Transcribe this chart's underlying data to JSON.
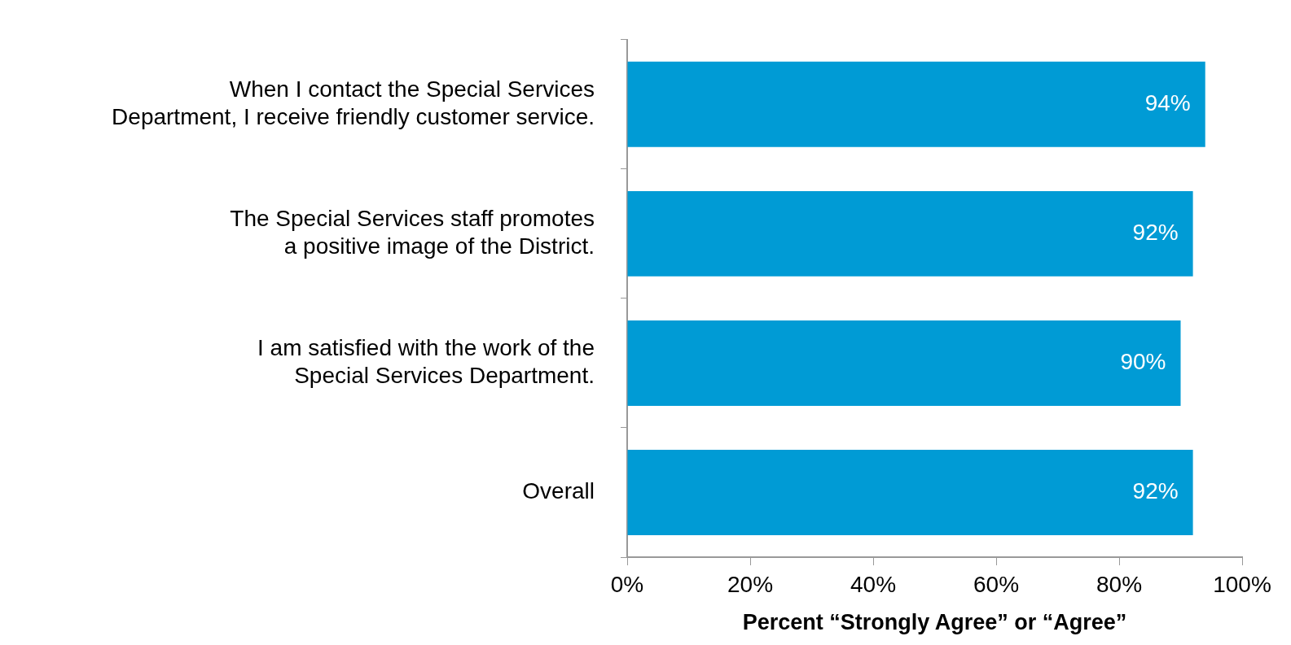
{
  "chart_data": {
    "type": "bar",
    "orientation": "horizontal",
    "categories": [
      "When I contact the Special Services Department, I receive friendly customer service.",
      "The Special Services staff promotes a positive image of the District.",
      "I am satisfied with the work of the Special Services Department.",
      "Overall"
    ],
    "values": [
      94,
      92,
      90,
      92
    ],
    "value_labels": [
      "94%",
      "92%",
      "90%",
      "92%"
    ],
    "color": "#009bd5",
    "xlim": [
      0,
      100
    ],
    "xticks": [
      {
        "value": 0,
        "label": "0%"
      },
      {
        "value": 20,
        "label": "20%"
      },
      {
        "value": 40,
        "label": "40%"
      },
      {
        "value": 60,
        "label": "60%"
      },
      {
        "value": 80,
        "label": "80%"
      },
      {
        "value": 100,
        "label": "100%"
      }
    ],
    "xlabel": "Percent “Strongly Agree” or “Agree”",
    "grid": false
  }
}
